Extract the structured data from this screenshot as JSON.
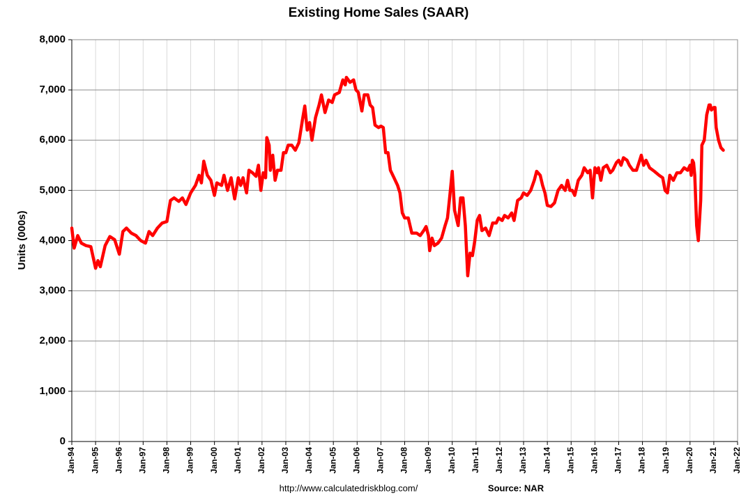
{
  "chart_data": {
    "type": "line",
    "title": "Existing Home Sales (SAAR)",
    "y_label": "Units (000s)",
    "source_url": "http://www.calculatedriskblog.com/",
    "source": "Source: NAR",
    "color": "#ff0000",
    "grid": true,
    "ylim": [
      0,
      8000
    ],
    "yticks": [
      0,
      {
        "value": 1000,
        "label": "1,000"
      },
      {
        "value": 2000,
        "label": "2,000"
      },
      {
        "value": 3000,
        "label": "3,000"
      },
      {
        "value": 4000,
        "label": "4,000"
      },
      {
        "value": 5000,
        "label": "5,000"
      },
      {
        "value": 6000,
        "label": "6,000"
      },
      {
        "value": 7000,
        "label": "7,000"
      },
      {
        "value": 8000,
        "label": "8,000"
      }
    ],
    "xlim": [
      1994,
      2022
    ],
    "xticks": [
      {
        "value": 1994,
        "label": "Jan-94"
      },
      {
        "value": 1995,
        "label": "Jan-95"
      },
      {
        "value": 1996,
        "label": "Jan-96"
      },
      {
        "value": 1997,
        "label": "Jan-97"
      },
      {
        "value": 1998,
        "label": "Jan-98"
      },
      {
        "value": 1999,
        "label": "Jan-99"
      },
      {
        "value": 2000,
        "label": "Jan-00"
      },
      {
        "value": 2001,
        "label": "Jan-01"
      },
      {
        "value": 2002,
        "label": "Jan-02"
      },
      {
        "value": 2003,
        "label": "Jan-03"
      },
      {
        "value": 2004,
        "label": "Jan-04"
      },
      {
        "value": 2005,
        "label": "Jan-05"
      },
      {
        "value": 2006,
        "label": "Jan-06"
      },
      {
        "value": 2007,
        "label": "Jan-07"
      },
      {
        "value": 2008,
        "label": "Jan-08"
      },
      {
        "value": 2009,
        "label": "Jan-09"
      },
      {
        "value": 2010,
        "label": "Jan-10"
      },
      {
        "value": 2011,
        "label": "Jan-11"
      },
      {
        "value": 2012,
        "label": "Jan-12"
      },
      {
        "value": 2013,
        "label": "Jan-13"
      },
      {
        "value": 2014,
        "label": "Jan-14"
      },
      {
        "value": 2015,
        "label": "Jan-15"
      },
      {
        "value": 2016,
        "label": "Jan-16"
      },
      {
        "value": 2017,
        "label": "Jan-17"
      },
      {
        "value": 2018,
        "label": "Jan-18"
      },
      {
        "value": 2019,
        "label": "Jan-19"
      },
      {
        "value": 2020,
        "label": "Jan-20"
      },
      {
        "value": 2021,
        "label": "Jan-21"
      },
      {
        "value": 2022,
        "label": "Jan-22"
      }
    ],
    "x": [
      1994.0,
      1994.1,
      1994.25,
      1994.4,
      1994.6,
      1994.8,
      1995.0,
      1995.1,
      1995.2,
      1995.4,
      1995.6,
      1995.8,
      1996.0,
      1996.15,
      1996.3,
      1996.5,
      1996.7,
      1996.9,
      1997.1,
      1997.25,
      1997.4,
      1997.6,
      1997.8,
      1998.0,
      1998.15,
      1998.3,
      1998.5,
      1998.65,
      1998.8,
      1999.0,
      1999.2,
      1999.35,
      1999.45,
      1999.55,
      1999.7,
      1999.85,
      2000.0,
      2000.1,
      2000.3,
      2000.4,
      2000.55,
      2000.7,
      2000.85,
      2001.0,
      2001.1,
      2001.2,
      2001.35,
      2001.45,
      2001.6,
      2001.75,
      2001.85,
      2001.95,
      2002.05,
      2002.15,
      2002.2,
      2002.3,
      2002.35,
      2002.45,
      2002.55,
      2002.65,
      2002.8,
      2002.9,
      2003.0,
      2003.1,
      2003.25,
      2003.4,
      2003.55,
      2003.7,
      2003.8,
      2003.9,
      2004.0,
      2004.1,
      2004.25,
      2004.4,
      2004.5,
      2004.65,
      2004.8,
      2004.95,
      2005.05,
      2005.25,
      2005.4,
      2005.5,
      2005.55,
      2005.7,
      2005.85,
      2005.95,
      2006.05,
      2006.2,
      2006.3,
      2006.45,
      2006.55,
      2006.65,
      2006.75,
      2006.9,
      2007.0,
      2007.1,
      2007.2,
      2007.3,
      2007.4,
      2007.55,
      2007.7,
      2007.8,
      2007.9,
      2008.0,
      2008.15,
      2008.3,
      2008.5,
      2008.65,
      2008.8,
      2008.9,
      2009.0,
      2009.05,
      2009.15,
      2009.25,
      2009.4,
      2009.55,
      2009.7,
      2009.8,
      2009.9,
      2010.0,
      2010.1,
      2010.25,
      2010.35,
      2010.45,
      2010.55,
      2010.65,
      2010.75,
      2010.85,
      2010.95,
      2011.05,
      2011.15,
      2011.25,
      2011.4,
      2011.55,
      2011.7,
      2011.85,
      2011.95,
      2012.1,
      2012.2,
      2012.35,
      2012.5,
      2012.6,
      2012.75,
      2012.9,
      2013.0,
      2013.15,
      2013.3,
      2013.45,
      2013.55,
      2013.7,
      2013.8,
      2013.9,
      2014.0,
      2014.15,
      2014.3,
      2014.45,
      2014.6,
      2014.75,
      2014.85,
      2014.95,
      2015.05,
      2015.15,
      2015.3,
      2015.45,
      2015.55,
      2015.7,
      2015.8,
      2015.9,
      2016.0,
      2016.1,
      2016.15,
      2016.25,
      2016.35,
      2016.5,
      2016.65,
      2016.75,
      2016.9,
      2017.0,
      2017.1,
      2017.2,
      2017.35,
      2017.45,
      2017.6,
      2017.75,
      2017.85,
      2017.95,
      2018.05,
      2018.15,
      2018.3,
      2018.5,
      2018.7,
      2018.85,
      2018.95,
      2019.05,
      2019.15,
      2019.3,
      2019.45,
      2019.6,
      2019.75,
      2019.9,
      2020.0,
      2020.05,
      2020.1,
      2020.15,
      2020.2,
      2020.28,
      2020.35,
      2020.45,
      2020.5,
      2020.6,
      2020.7,
      2020.8,
      2020.85,
      2020.9,
      2021.0,
      2021.05,
      2021.1,
      2021.2,
      2021.3,
      2021.4
    ],
    "values": [
      4250,
      3850,
      4100,
      3950,
      3900,
      3880,
      3450,
      3600,
      3480,
      3900,
      4080,
      4020,
      3730,
      4180,
      4250,
      4150,
      4100,
      4000,
      3950,
      4180,
      4100,
      4250,
      4350,
      4380,
      4800,
      4850,
      4780,
      4850,
      4720,
      4950,
      5100,
      5300,
      5150,
      5580,
      5300,
      5200,
      4900,
      5150,
      5100,
      5300,
      5000,
      5250,
      4830,
      5250,
      5100,
      5250,
      4950,
      5400,
      5350,
      5280,
      5500,
      5000,
      5350,
      5250,
      6050,
      5900,
      5400,
      5700,
      5200,
      5400,
      5400,
      5750,
      5750,
      5900,
      5900,
      5800,
      5950,
      6400,
      6680,
      6200,
      6350,
      6000,
      6450,
      6700,
      6900,
      6550,
      6800,
      6750,
      6900,
      6950,
      7200,
      7100,
      7250,
      7150,
      7200,
      7000,
      6950,
      6580,
      6900,
      6900,
      6700,
      6650,
      6300,
      6250,
      6280,
      6250,
      5750,
      5750,
      5400,
      5250,
      5100,
      4950,
      4550,
      4450,
      4450,
      4150,
      4150,
      4100,
      4200,
      4280,
      4100,
      3800,
      4050,
      3900,
      3950,
      4050,
      4300,
      4450,
      4900,
      5380,
      4600,
      4300,
      4850,
      4850,
      4300,
      3300,
      3750,
      3700,
      4000,
      4400,
      4500,
      4200,
      4250,
      4100,
      4350,
      4350,
      4450,
      4400,
      4500,
      4450,
      4550,
      4400,
      4800,
      4850,
      4950,
      4900,
      5000,
      5200,
      5380,
      5300,
      5100,
      4950,
      4700,
      4680,
      4750,
      5000,
      5100,
      5000,
      5200,
      5000,
      5000,
      4900,
      5200,
      5300,
      5450,
      5350,
      5400,
      4850,
      5450,
      5350,
      5450,
      5200,
      5450,
      5500,
      5350,
      5400,
      5550,
      5600,
      5500,
      5650,
      5600,
      5500,
      5400,
      5400,
      5550,
      5700,
      5500,
      5600,
      5450,
      5380,
      5300,
      5250,
      5000,
      4950,
      5300,
      5200,
      5350,
      5350,
      5450,
      5400,
      5500,
      5300,
      5600,
      5550,
      5300,
      4300,
      4000,
      4800,
      5900,
      6000,
      6500,
      6700,
      6700,
      6600,
      6650,
      6650,
      6250,
      6000,
      5850,
      5800
    ]
  }
}
